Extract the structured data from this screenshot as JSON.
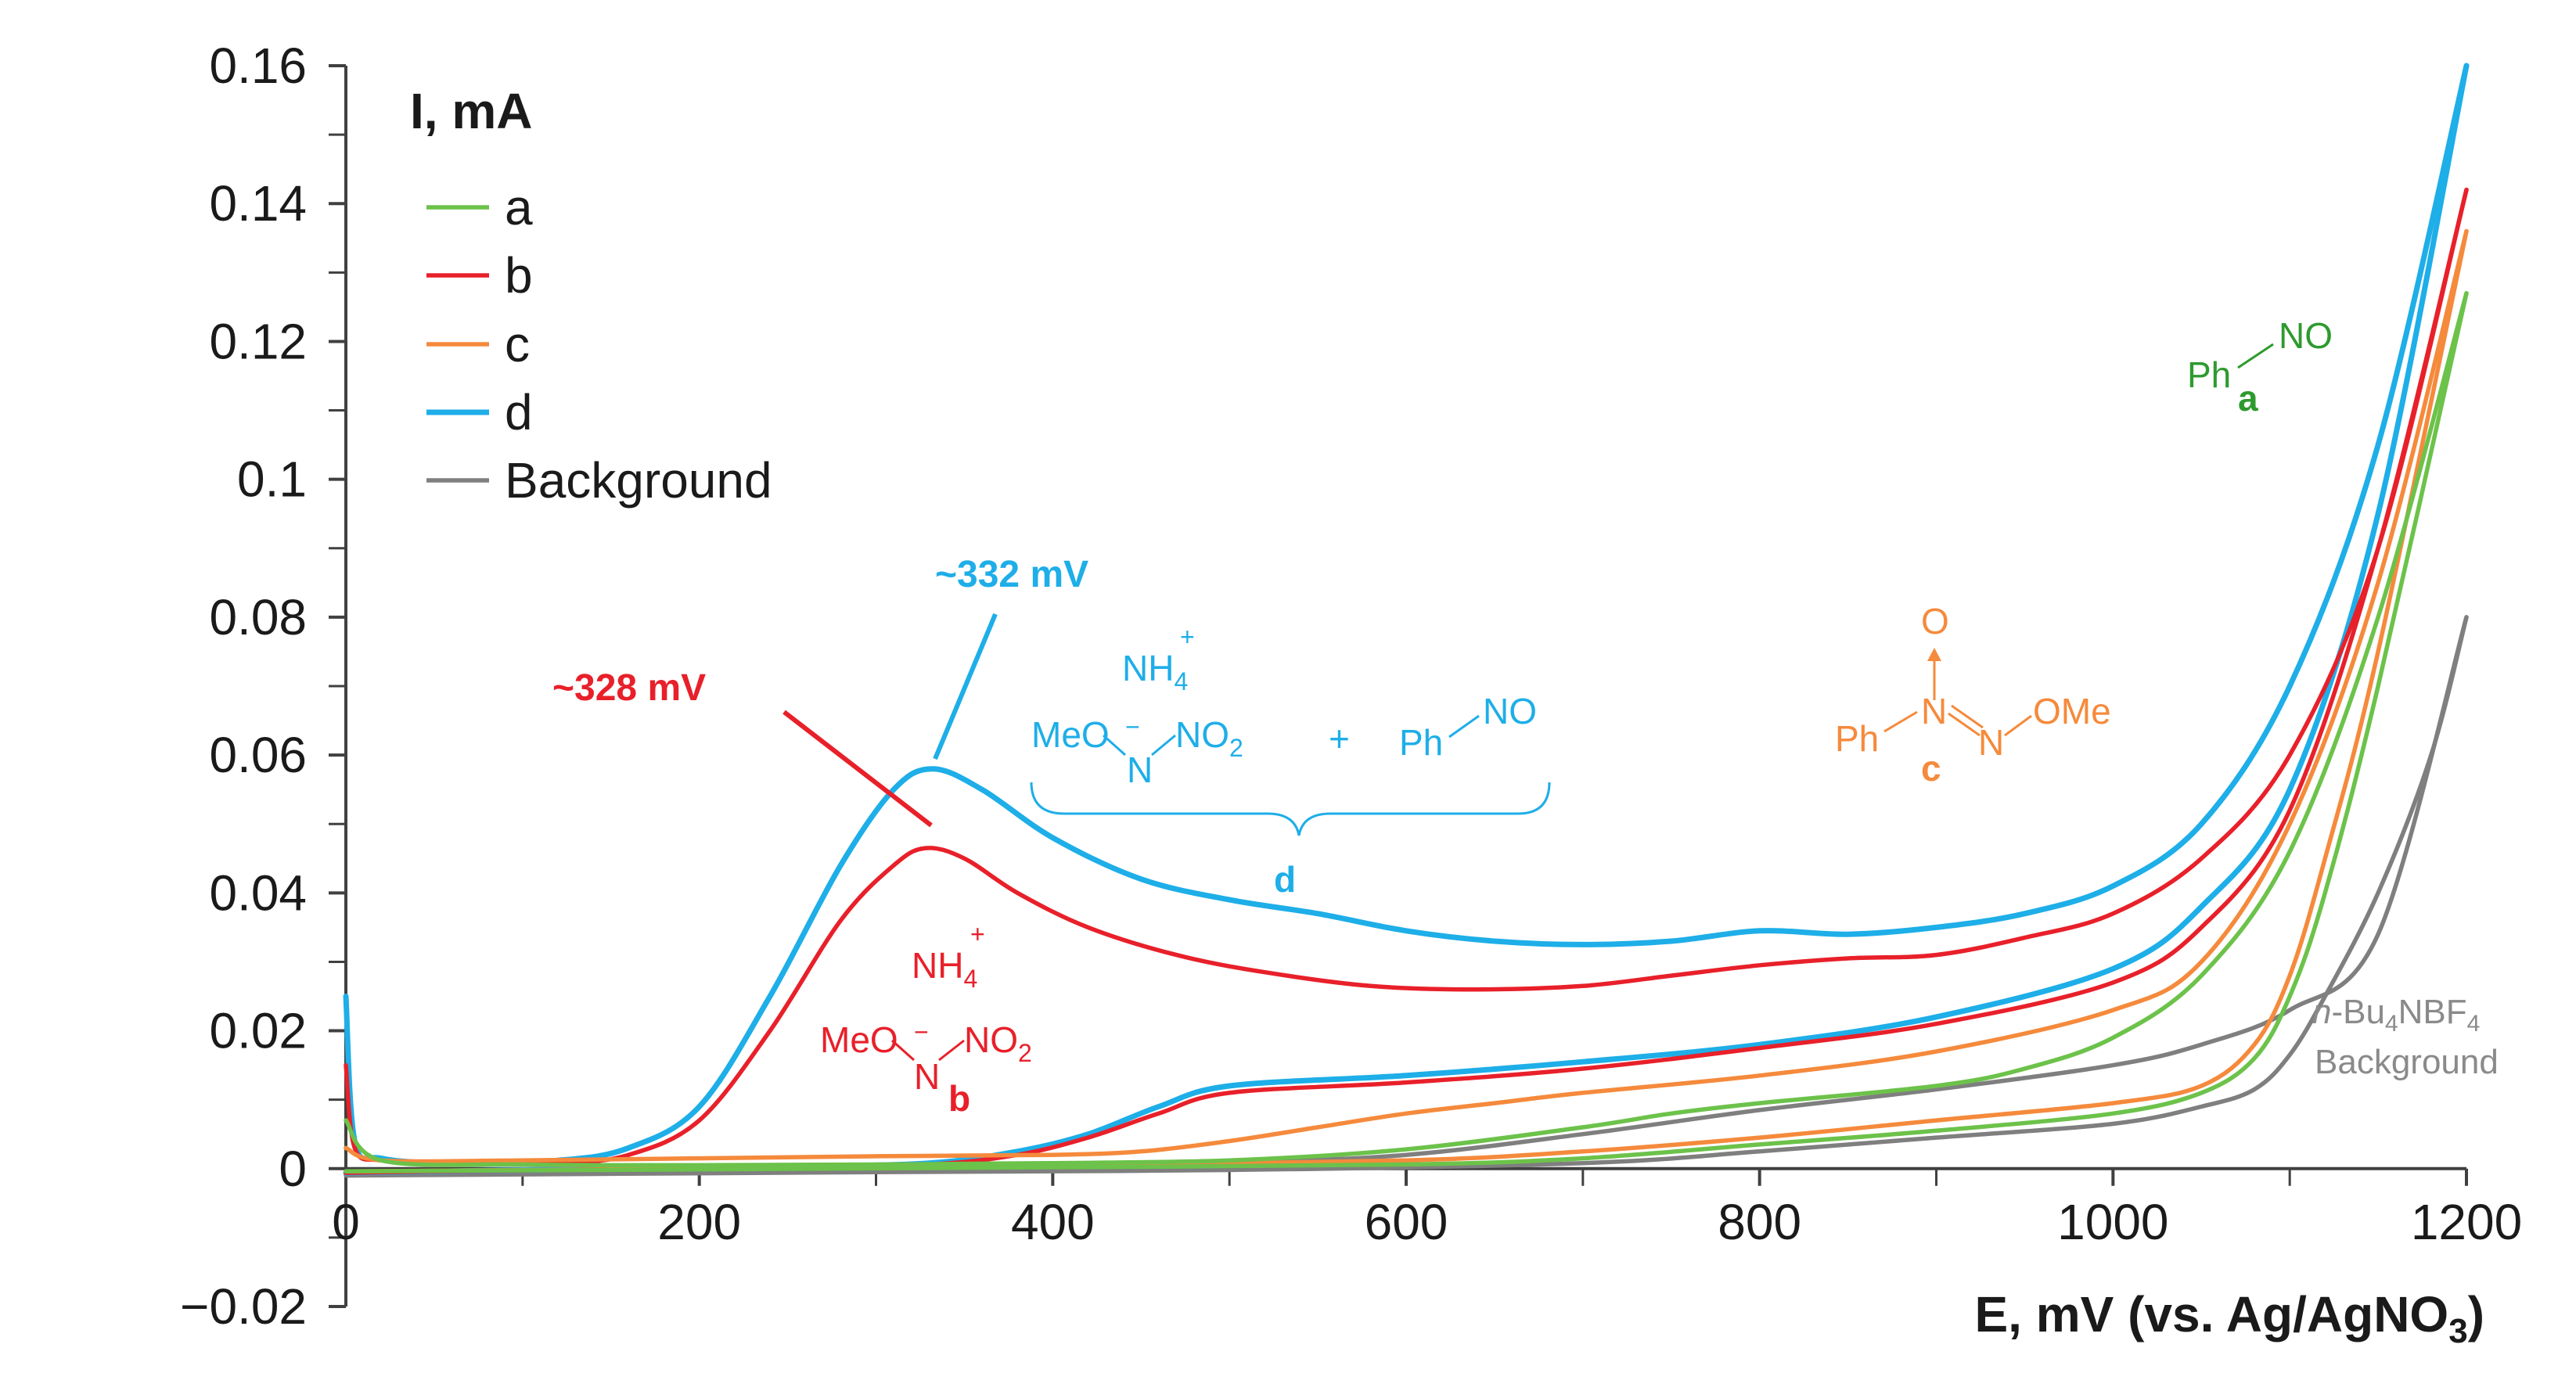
{
  "colors": {
    "a": "#6cc24a",
    "b": "#e8202a",
    "c": "#f58a3c",
    "d": "#1eaee8",
    "background": "#7f7f7f",
    "a_label": "#2e9a2e",
    "axis": "#404040"
  },
  "chart_data": {
    "type": "line",
    "title": "",
    "xlabel": "E, mV (vs. Ag/AgNO",
    "xlabel_sub": "3",
    "xlabel_end": ")",
    "ylabel": "I, mA",
    "xlim": [
      0,
      1200
    ],
    "ylim": [
      -0.02,
      0.16
    ],
    "x_ticks": [
      0,
      200,
      400,
      600,
      800,
      1000,
      1200
    ],
    "x_tick_labels": [
      "0",
      "200",
      "400",
      "600",
      "800",
      "1000",
      "1200"
    ],
    "y_ticks": [
      -0.02,
      0,
      0.02,
      0.04,
      0.06,
      0.08,
      0.1,
      0.12,
      0.14,
      0.16
    ],
    "y_tick_labels": [
      "−0.02",
      "0",
      "0.02",
      "0.04",
      "0.06",
      "0.08",
      "0.1",
      "0.12",
      "0.14",
      "0.16"
    ],
    "legend": [
      "a",
      "b",
      "c",
      "d",
      "Background"
    ],
    "series": [
      {
        "name": "d",
        "key": "d",
        "forward": [
          [
            0,
            0.025
          ],
          [
            5,
            0.004
          ],
          [
            20,
            0.0015
          ],
          [
            60,
            0.0008
          ],
          [
            120,
            0.0012
          ],
          [
            160,
            0.003
          ],
          [
            200,
            0.009
          ],
          [
            240,
            0.025
          ],
          [
            280,
            0.044
          ],
          [
            310,
            0.055
          ],
          [
            332,
            0.058
          ],
          [
            360,
            0.055
          ],
          [
            400,
            0.048
          ],
          [
            450,
            0.042
          ],
          [
            500,
            0.039
          ],
          [
            550,
            0.037
          ],
          [
            600,
            0.0345
          ],
          [
            650,
            0.033
          ],
          [
            700,
            0.0325
          ],
          [
            750,
            0.033
          ],
          [
            800,
            0.0345
          ],
          [
            850,
            0.034
          ],
          [
            900,
            0.035
          ],
          [
            950,
            0.037
          ],
          [
            1000,
            0.041
          ],
          [
            1050,
            0.05
          ],
          [
            1100,
            0.07
          ],
          [
            1150,
            0.105
          ],
          [
            1200,
            0.16
          ]
        ],
        "reverse": [
          [
            1200,
            0.16
          ],
          [
            1150,
            0.095
          ],
          [
            1100,
            0.055
          ],
          [
            1050,
            0.038
          ],
          [
            1000,
            0.029
          ],
          [
            900,
            0.022
          ],
          [
            800,
            0.018
          ],
          [
            700,
            0.0155
          ],
          [
            600,
            0.0135
          ],
          [
            500,
            0.012
          ],
          [
            460,
            0.009
          ],
          [
            420,
            0.005
          ],
          [
            380,
            0.0025
          ],
          [
            330,
            0.0008
          ],
          [
            250,
            0.0003
          ],
          [
            150,
            0.0
          ],
          [
            50,
            -0.0004
          ],
          [
            0,
            -0.0006
          ]
        ]
      },
      {
        "name": "b",
        "key": "b",
        "forward": [
          [
            0,
            0.015
          ],
          [
            5,
            0.003
          ],
          [
            20,
            0.0012
          ],
          [
            60,
            0.0008
          ],
          [
            120,
            0.0008
          ],
          [
            160,
            0.002
          ],
          [
            200,
            0.007
          ],
          [
            240,
            0.02
          ],
          [
            280,
            0.036
          ],
          [
            310,
            0.044
          ],
          [
            328,
            0.0465
          ],
          [
            350,
            0.045
          ],
          [
            380,
            0.04
          ],
          [
            420,
            0.035
          ],
          [
            470,
            0.031
          ],
          [
            520,
            0.0285
          ],
          [
            580,
            0.0265
          ],
          [
            640,
            0.026
          ],
          [
            700,
            0.0265
          ],
          [
            750,
            0.028
          ],
          [
            800,
            0.0295
          ],
          [
            850,
            0.0305
          ],
          [
            900,
            0.031
          ],
          [
            950,
            0.0335
          ],
          [
            1000,
            0.037
          ],
          [
            1050,
            0.045
          ],
          [
            1100,
            0.06
          ],
          [
            1150,
            0.09
          ],
          [
            1200,
            0.142
          ]
        ],
        "reverse": [
          [
            1200,
            0.142
          ],
          [
            1150,
            0.09
          ],
          [
            1100,
            0.052
          ],
          [
            1050,
            0.035
          ],
          [
            1000,
            0.027
          ],
          [
            900,
            0.021
          ],
          [
            800,
            0.0175
          ],
          [
            700,
            0.0145
          ],
          [
            600,
            0.0125
          ],
          [
            500,
            0.011
          ],
          [
            460,
            0.008
          ],
          [
            420,
            0.0045
          ],
          [
            380,
            0.002
          ],
          [
            330,
            0.0006
          ],
          [
            250,
            0.0002
          ],
          [
            150,
            -0.0001
          ],
          [
            50,
            -0.0004
          ],
          [
            0,
            -0.0006
          ]
        ]
      },
      {
        "name": "c",
        "key": "c",
        "forward": [
          [
            0,
            0.003
          ],
          [
            20,
            0.0012
          ],
          [
            100,
            0.0012
          ],
          [
            200,
            0.0015
          ],
          [
            300,
            0.0018
          ],
          [
            400,
            0.002
          ],
          [
            450,
            0.0025
          ],
          [
            500,
            0.004
          ],
          [
            550,
            0.006
          ],
          [
            600,
            0.008
          ],
          [
            650,
            0.0095
          ],
          [
            700,
            0.011
          ],
          [
            800,
            0.0135
          ],
          [
            900,
            0.017
          ],
          [
            1000,
            0.023
          ],
          [
            1050,
            0.03
          ],
          [
            1100,
            0.05
          ],
          [
            1150,
            0.085
          ],
          [
            1200,
            0.136
          ]
        ],
        "reverse": [
          [
            1200,
            0.136
          ],
          [
            1150,
            0.075
          ],
          [
            1120,
            0.045
          ],
          [
            1100,
            0.028
          ],
          [
            1080,
            0.018
          ],
          [
            1050,
            0.012
          ],
          [
            1000,
            0.0095
          ],
          [
            900,
            0.007
          ],
          [
            800,
            0.0045
          ],
          [
            700,
            0.0025
          ],
          [
            600,
            0.0012
          ],
          [
            400,
            0.0004
          ],
          [
            200,
            0.0
          ],
          [
            0,
            -0.0004
          ]
        ]
      },
      {
        "name": "a",
        "key": "a",
        "forward": [
          [
            0,
            0.007
          ],
          [
            20,
            0.0012
          ],
          [
            100,
            0.0006
          ],
          [
            200,
            0.0005
          ],
          [
            300,
            0.0006
          ],
          [
            400,
            0.0008
          ],
          [
            500,
            0.0012
          ],
          [
            600,
            0.0028
          ],
          [
            700,
            0.006
          ],
          [
            750,
            0.008
          ],
          [
            800,
            0.0095
          ],
          [
            900,
            0.012
          ],
          [
            950,
            0.0145
          ],
          [
            1000,
            0.019
          ],
          [
            1050,
            0.028
          ],
          [
            1100,
            0.046
          ],
          [
            1150,
            0.08
          ],
          [
            1200,
            0.127
          ]
        ],
        "reverse": [
          [
            1200,
            0.127
          ],
          [
            1150,
            0.07
          ],
          [
            1120,
            0.04
          ],
          [
            1100,
            0.025
          ],
          [
            1080,
            0.016
          ],
          [
            1050,
            0.011
          ],
          [
            1000,
            0.008
          ],
          [
            900,
            0.0055
          ],
          [
            800,
            0.0035
          ],
          [
            700,
            0.0015
          ],
          [
            600,
            0.0006
          ],
          [
            400,
            0.0002
          ],
          [
            200,
            -0.0001
          ],
          [
            0,
            -0.0004
          ]
        ]
      },
      {
        "name": "Background",
        "key": "background",
        "forward": [
          [
            0,
            -0.0008
          ],
          [
            100,
            -0.0006
          ],
          [
            200,
            -0.0004
          ],
          [
            300,
            -0.0002
          ],
          [
            400,
            0.0
          ],
          [
            500,
            0.0008
          ],
          [
            600,
            0.002
          ],
          [
            700,
            0.005
          ],
          [
            800,
            0.0085
          ],
          [
            900,
            0.0115
          ],
          [
            1000,
            0.015
          ],
          [
            1050,
            0.018
          ],
          [
            1100,
            0.023
          ],
          [
            1150,
            0.034
          ],
          [
            1200,
            0.08
          ]
        ],
        "reverse": [
          [
            1200,
            0.08
          ],
          [
            1180,
            0.06
          ],
          [
            1150,
            0.04
          ],
          [
            1120,
            0.025
          ],
          [
            1100,
            0.0165
          ],
          [
            1080,
            0.0115
          ],
          [
            1050,
            0.009
          ],
          [
            1000,
            0.0065
          ],
          [
            900,
            0.0045
          ],
          [
            800,
            0.0025
          ],
          [
            700,
            0.0008
          ],
          [
            500,
            -0.0002
          ],
          [
            300,
            -0.0005
          ],
          [
            0,
            -0.001
          ]
        ]
      }
    ],
    "annotations": {
      "peak_d": "~332 mV",
      "peak_b": "~328 mV",
      "background_line1_italic": "n",
      "background_line1": "-Bu",
      "background_line1_sub1": "4",
      "background_line1_mid": "NBF",
      "background_line1_sub2": "4",
      "background_line2": "Background"
    },
    "structures": {
      "a": {
        "ph": "Ph",
        "no": "NO",
        "label": "a"
      },
      "b": {
        "nh": "NH",
        "sub4": "4",
        "plus": "+",
        "meo": "MeO",
        "minus": "−",
        "n": "N",
        "no2": "NO",
        "sub2": "2",
        "label": "b"
      },
      "c": {
        "o": "O",
        "ph": "Ph",
        "n1": "N",
        "n2": "N",
        "ome": "OMe",
        "label": "c"
      },
      "d": {
        "nh": "NH",
        "sub4": "4",
        "plus": "+",
        "meo": "MeO",
        "minus": "−",
        "n": "N",
        "no2": "NO",
        "sub2": "2",
        "plus_sign": "+",
        "ph": "Ph",
        "no": "NO",
        "label": "d"
      }
    }
  }
}
